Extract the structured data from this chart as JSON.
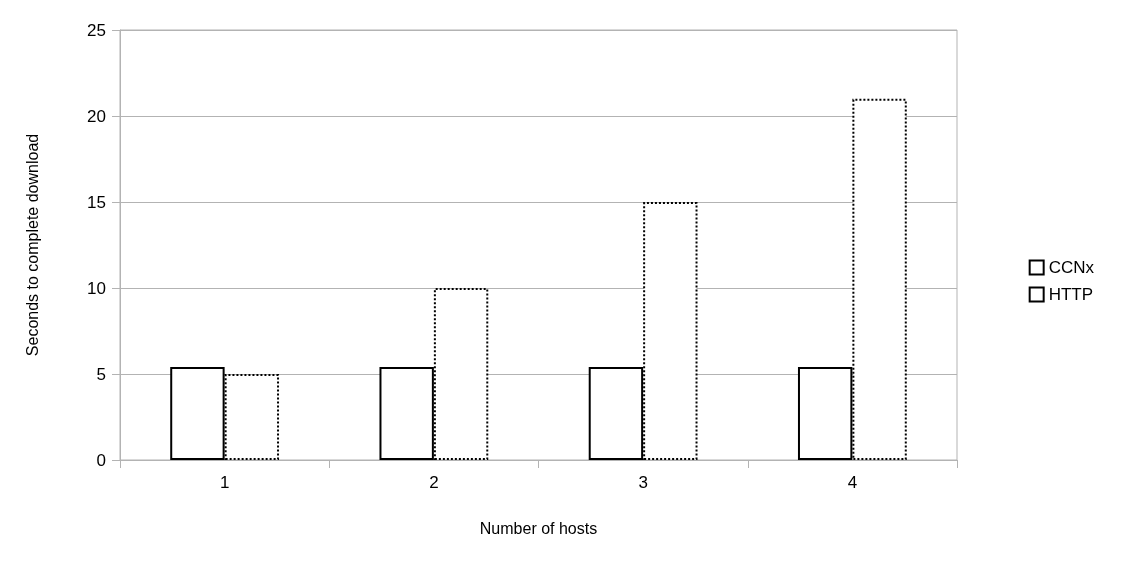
{
  "chart_data": {
    "type": "bar",
    "xlabel": "Number of hosts",
    "ylabel": "Seconds to complete download",
    "categories": [
      "1",
      "2",
      "3",
      "4"
    ],
    "series": [
      {
        "name": "CCNx",
        "color": "#000000",
        "line_style": "solid",
        "values": [
          5.4,
          5.4,
          5.4,
          5.4
        ]
      },
      {
        "name": "HTTP",
        "color": "#000000",
        "line_style": "dotted",
        "values": [
          5,
          10,
          15,
          21
        ]
      }
    ],
    "ylim": [
      0,
      25
    ],
    "yticks": [
      0,
      5,
      10,
      15,
      20,
      25
    ],
    "grid": "y",
    "legend": "right"
  }
}
